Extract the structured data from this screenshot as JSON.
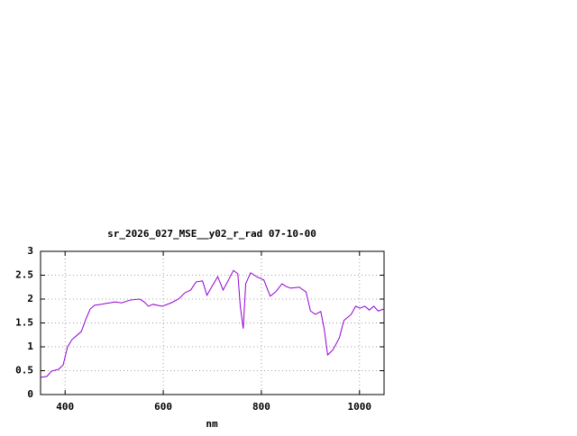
{
  "chart_data": {
    "type": "line",
    "title": "sr_2026_027_MSE__y02_r_rad 07-10-00",
    "x_label": "nm",
    "x": [
      350,
      363,
      372,
      387,
      396,
      405,
      414,
      423,
      433,
      442,
      451,
      460,
      473,
      484,
      491,
      502,
      515,
      533,
      552,
      561,
      570,
      579,
      598,
      616,
      631,
      644,
      656,
      667,
      680,
      689,
      699,
      711,
      722,
      732,
      743,
      752,
      757,
      763,
      768,
      778,
      790,
      805,
      818,
      829,
      842,
      851,
      860,
      877,
      891,
      900,
      910,
      921,
      928,
      935,
      946,
      959,
      968,
      983,
      992,
      1001,
      1011,
      1020,
      1029,
      1038,
      1049
    ],
    "series": [
      {
        "color": "#9400d3",
        "values": [
          0.36,
          0.38,
          0.49,
          0.53,
          0.62,
          1.0,
          1.15,
          1.23,
          1.32,
          1.57,
          1.79,
          1.87,
          1.89,
          1.91,
          1.92,
          1.94,
          1.92,
          1.98,
          2.0,
          1.94,
          1.85,
          1.89,
          1.85,
          1.92,
          2.0,
          2.13,
          2.19,
          2.36,
          2.38,
          2.08,
          2.26,
          2.47,
          2.19,
          2.38,
          2.6,
          2.53,
          1.85,
          1.38,
          2.32,
          2.55,
          2.47,
          2.4,
          2.06,
          2.15,
          2.32,
          2.26,
          2.23,
          2.25,
          2.15,
          1.75,
          1.68,
          1.74,
          1.38,
          0.83,
          0.94,
          1.19,
          1.55,
          1.68,
          1.85,
          1.81,
          1.85,
          1.77,
          1.85,
          1.75,
          1.79
        ]
      }
    ],
    "xlim": [
      350,
      1050
    ],
    "xticks": [
      400,
      600,
      800,
      1000
    ],
    "ylim": [
      0,
      3
    ],
    "yticks": [
      0,
      0.5,
      1,
      1.5,
      2,
      2.5,
      3
    ],
    "grid": true
  }
}
